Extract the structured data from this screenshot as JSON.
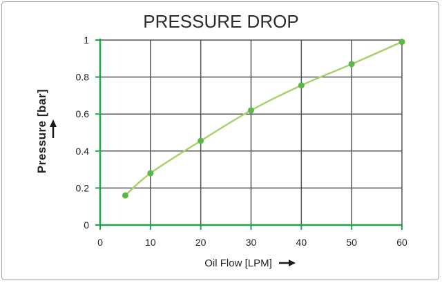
{
  "chart_data": {
    "type": "line",
    "title": "PRESSURE DROP",
    "xlabel": "Oil Flow [LPM]",
    "ylabel": "Pressure [bar]",
    "xlim": [
      0,
      60
    ],
    "ylim": [
      0,
      1
    ],
    "x_ticks": [
      0,
      10,
      20,
      30,
      40,
      50,
      60
    ],
    "y_ticks": [
      0,
      0.2,
      0.4,
      0.6,
      0.8,
      1
    ],
    "y_tick_labels": [
      "0",
      "0.2",
      "0.4",
      "0.6",
      "0.8",
      "1"
    ],
    "grid": true,
    "legend": "none",
    "series": [
      {
        "x": [
          5,
          10,
          20,
          30,
          40,
          50,
          60
        ],
        "y": [
          0.16,
          0.28,
          0.455,
          0.62,
          0.755,
          0.87,
          0.99
        ]
      }
    ],
    "colors": {
      "axis": "#1fa64a",
      "grid": "#555555",
      "line": "#a8d26b",
      "marker": "#5cb846",
      "arrow": "#1a1a1a"
    }
  }
}
